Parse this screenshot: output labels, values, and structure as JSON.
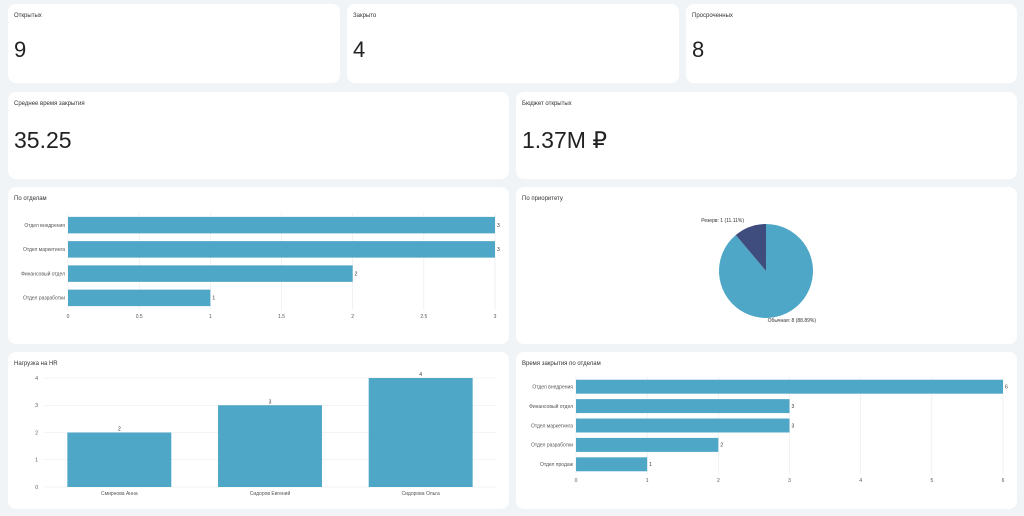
{
  "kpis": {
    "open": {
      "title": "Открытых",
      "value": "9"
    },
    "closed": {
      "title": "Закрыто",
      "value": "4"
    },
    "overdue": {
      "title": "Просроченных",
      "value": "8"
    },
    "avg_close": {
      "title": "Среднее время закрытия",
      "value": "35.25"
    },
    "budget": {
      "title": "Бюджет открытых",
      "value": "1.37M ₽"
    }
  },
  "colors": {
    "bar": "#4fa7c7",
    "pie_main": "#4fa7c7",
    "pie_reserve": "#3f4d7e"
  },
  "chart_data": [
    {
      "id": "dept",
      "type": "bar",
      "orientation": "horizontal",
      "title": "По отделам",
      "categories": [
        "Отдел внедрения",
        "Отдел маркетинга",
        "Финансовый отдел",
        "Отдел разработки"
      ],
      "values": [
        3,
        3,
        2,
        1
      ],
      "xlim": [
        0,
        3
      ],
      "ticks": [
        "0",
        "0.5",
        "1",
        "1.5",
        "2",
        "2.5",
        "3"
      ],
      "grid": true
    },
    {
      "id": "priority",
      "type": "pie",
      "title": "По приоритету",
      "slices": [
        {
          "label": "Обычная: 8 (88.89%)",
          "value": 8
        },
        {
          "label": "Резерв: 1 (11.11%)",
          "value": 1
        }
      ]
    },
    {
      "id": "hr",
      "type": "bar",
      "orientation": "vertical",
      "title": "Нагрузка на HR",
      "categories": [
        "Смирнова Анна",
        "Сидоров Евгений",
        "Сидорова Ольга"
      ],
      "values": [
        2,
        3,
        4
      ],
      "ylim": [
        0,
        4
      ],
      "ticks": [
        "0",
        "1",
        "2",
        "3",
        "4"
      ],
      "grid": true
    },
    {
      "id": "closetime",
      "type": "bar",
      "orientation": "horizontal",
      "title": "Время закрытия по отделам",
      "categories": [
        "Отдел внедрения",
        "Финансовый отдел",
        "Отдел маркетинга",
        "Отдел разработки",
        "Отдел продаж"
      ],
      "values": [
        6,
        3,
        3,
        2,
        1
      ],
      "xlim": [
        0,
        6
      ],
      "ticks": [
        "0",
        "1",
        "2",
        "3",
        "4",
        "5",
        "6"
      ],
      "grid": true
    }
  ]
}
